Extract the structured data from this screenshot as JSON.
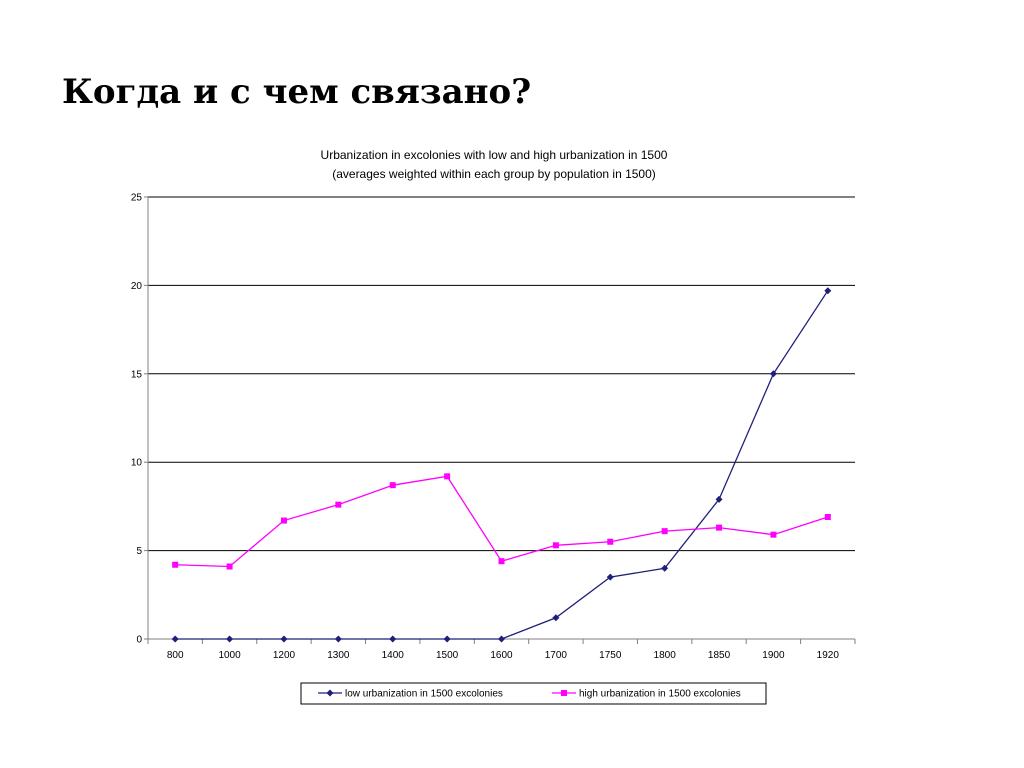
{
  "slide": {
    "title": "Когда и с чем связано?"
  },
  "colors": {
    "low": "#1f1f7a",
    "high": "#ff00ff",
    "grid": "#000000",
    "axis": "#808080"
  },
  "chart_data": {
    "type": "line",
    "title": "Urbanization in excolonies with low and high urbanization in 1500",
    "subtitle": "(averages weighted within each group by population in 1500)",
    "xlabel": "",
    "ylabel": "",
    "categories": [
      "800",
      "1000",
      "1200",
      "1300",
      "1400",
      "1500",
      "1600",
      "1700",
      "1750",
      "1800",
      "1850",
      "1900",
      "1920"
    ],
    "ylim": [
      0,
      25
    ],
    "yticks": [
      "0",
      "5",
      "10",
      "15",
      "20",
      "25"
    ],
    "grid": true,
    "legend_position": "bottom",
    "series": [
      {
        "name": "low urbanization in 1500 excolonies",
        "marker": "diamond",
        "color": "#1f1f7a",
        "values": [
          0,
          0,
          0,
          0,
          0,
          0,
          0,
          1.2,
          3.5,
          4.0,
          7.9,
          15.0,
          19.7
        ]
      },
      {
        "name": "high urbanization in 1500 excolonies",
        "marker": "square",
        "color": "#ff00ff",
        "values": [
          4.2,
          4.1,
          6.7,
          7.6,
          8.7,
          9.2,
          4.4,
          5.3,
          5.5,
          6.1,
          6.3,
          5.9,
          6.9
        ]
      }
    ]
  }
}
